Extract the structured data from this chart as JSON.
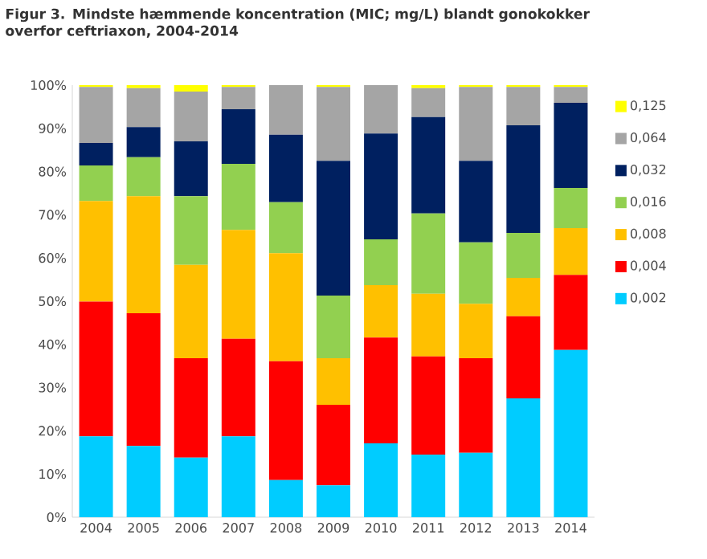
{
  "chart_data": {
    "type": "bar",
    "stacked": true,
    "title": "Figur 3. Mindste hæmmende koncentration (MIC; mg/L) blandt gonokokker overfor ceftriaxon, 2004-2014",
    "categories": [
      "2004",
      "2005",
      "2006",
      "2007",
      "2008",
      "2009",
      "2010",
      "2011",
      "2012",
      "2013",
      "2014"
    ],
    "series": [
      {
        "name": "0,002",
        "color": "#00ccff",
        "values": [
          18.7,
          16.5,
          13.8,
          18.7,
          8.6,
          7.4,
          17.1,
          14.5,
          14.9,
          27.5,
          38.7
        ]
      },
      {
        "name": "0,004",
        "color": "#ff0000",
        "values": [
          31.2,
          30.7,
          23.0,
          22.6,
          27.5,
          18.6,
          24.5,
          22.7,
          21.9,
          19.0,
          17.4
        ]
      },
      {
        "name": "0,008",
        "color": "#ffc000",
        "values": [
          23.3,
          27.1,
          21.6,
          25.2,
          25.0,
          10.8,
          12.1,
          14.5,
          12.6,
          8.9,
          10.8
        ]
      },
      {
        "name": "0,016",
        "color": "#92d050",
        "values": [
          8.2,
          9.0,
          15.9,
          15.3,
          11.8,
          14.5,
          10.6,
          18.6,
          14.2,
          10.4,
          9.3
        ]
      },
      {
        "name": "0,032",
        "color": "#002060",
        "values": [
          5.2,
          7.0,
          12.7,
          12.6,
          15.6,
          31.2,
          24.5,
          22.3,
          18.9,
          24.9,
          19.7
        ]
      },
      {
        "name": "0,064",
        "color": "#a5a5a5",
        "values": [
          13.0,
          9.0,
          11.5,
          5.2,
          11.5,
          17.1,
          11.2,
          6.7,
          17.1,
          8.9,
          3.7
        ]
      },
      {
        "name": "0,125",
        "color": "#ffff00",
        "values": [
          0.4,
          0.7,
          1.5,
          0.4,
          0.0,
          0.4,
          0.0,
          0.7,
          0.4,
          0.4,
          0.4
        ]
      }
    ],
    "ylim": [
      0,
      100
    ],
    "yticks": [
      {
        "value": 0,
        "label": "0%"
      },
      {
        "value": 10,
        "label": "10%"
      },
      {
        "value": 20,
        "label": "20%"
      },
      {
        "value": 30,
        "label": "30%"
      },
      {
        "value": 40,
        "label": "40%"
      },
      {
        "value": 50,
        "label": "50%"
      },
      {
        "value": 60,
        "label": "60%"
      },
      {
        "value": 70,
        "label": "70%"
      },
      {
        "value": 80,
        "label": "80%"
      },
      {
        "value": 90,
        "label": "90%"
      },
      {
        "value": 100,
        "label": "100%"
      }
    ],
    "legend": "right"
  }
}
